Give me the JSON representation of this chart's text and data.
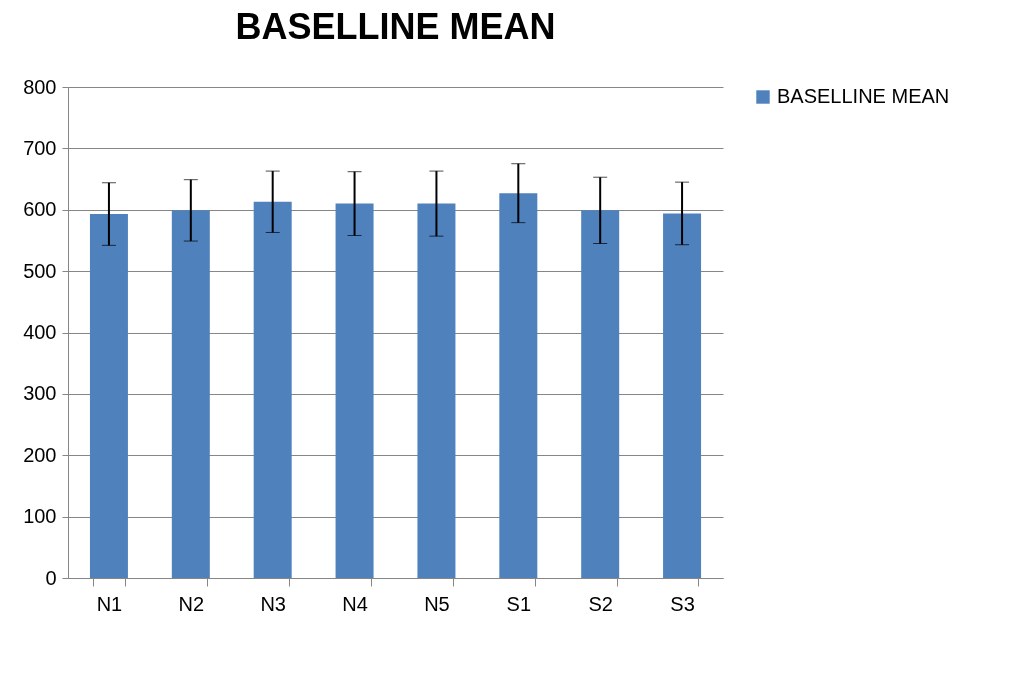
{
  "chart_data": {
    "type": "bar",
    "title": "BASELLINE MEAN",
    "categories": [
      "N1",
      "N2",
      "N3",
      "N4",
      "N5",
      "S1",
      "S2",
      "S3"
    ],
    "series": [
      {
        "name": "BASELLINE MEAN",
        "color": "#4f81bd",
        "values": [
          593,
          599,
          613,
          610,
          610,
          627,
          599,
          594
        ],
        "errors": [
          51,
          50,
          50,
          52,
          53,
          48,
          54,
          51
        ]
      }
    ],
    "ylim": [
      0,
      800
    ],
    "yticks": [
      0,
      100,
      200,
      300,
      400,
      500,
      600,
      700,
      800
    ],
    "grid": "y",
    "legend": "right"
  }
}
